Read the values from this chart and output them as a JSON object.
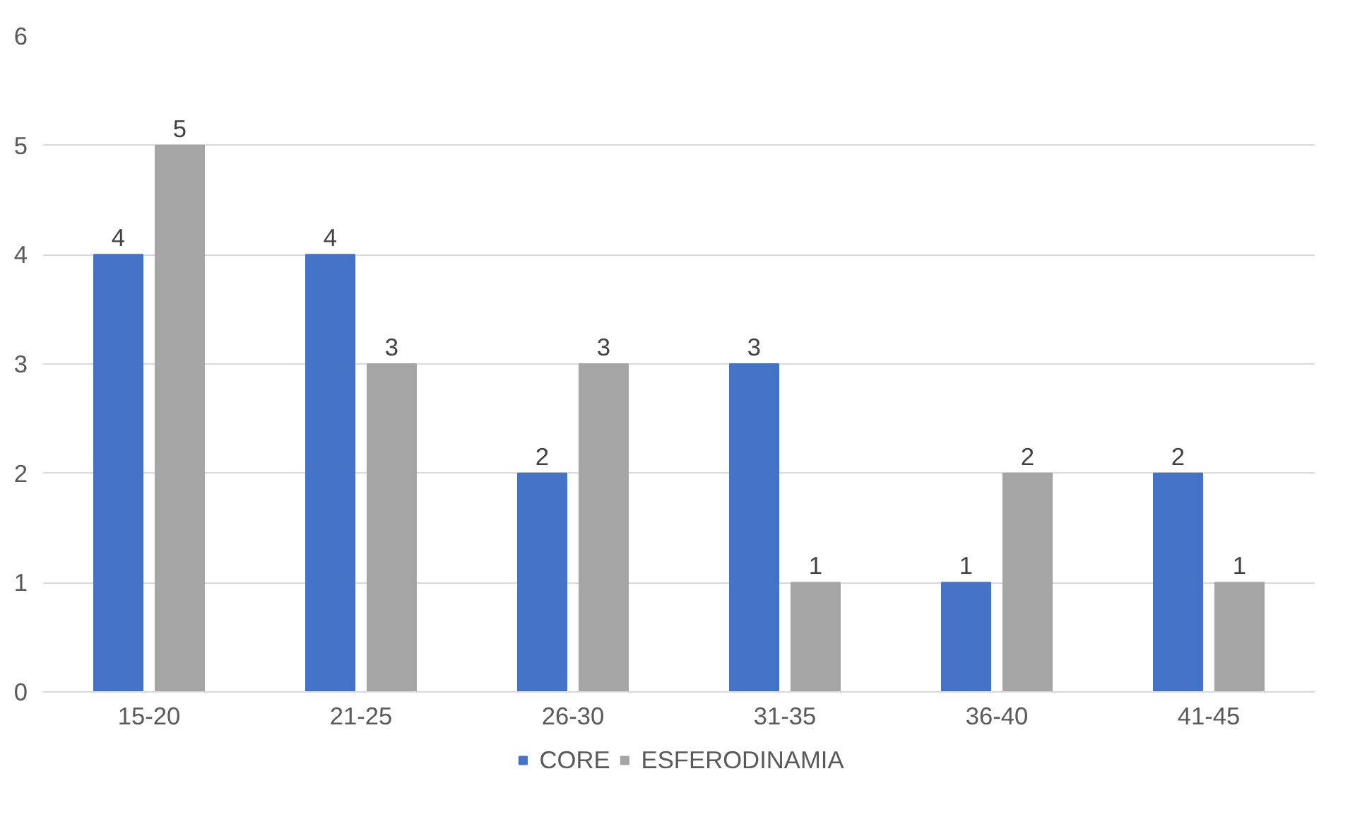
{
  "chart_data": {
    "type": "bar",
    "categories": [
      "15-20",
      "21-25",
      "26-30",
      "31-35",
      "36-40",
      "41-45"
    ],
    "series": [
      {
        "name": "CORE",
        "color": "#4472c4",
        "values": [
          4,
          4,
          2,
          3,
          1,
          2
        ]
      },
      {
        "name": "ESFERODINAMIA",
        "color": "#a5a5a5",
        "values": [
          5,
          3,
          3,
          1,
          2,
          1
        ]
      }
    ],
    "ylim": [
      0,
      6
    ],
    "yticks": [
      0,
      1,
      2,
      3,
      4,
      5,
      6
    ],
    "grid": "y",
    "data_labels": true,
    "legend": "bottom"
  }
}
